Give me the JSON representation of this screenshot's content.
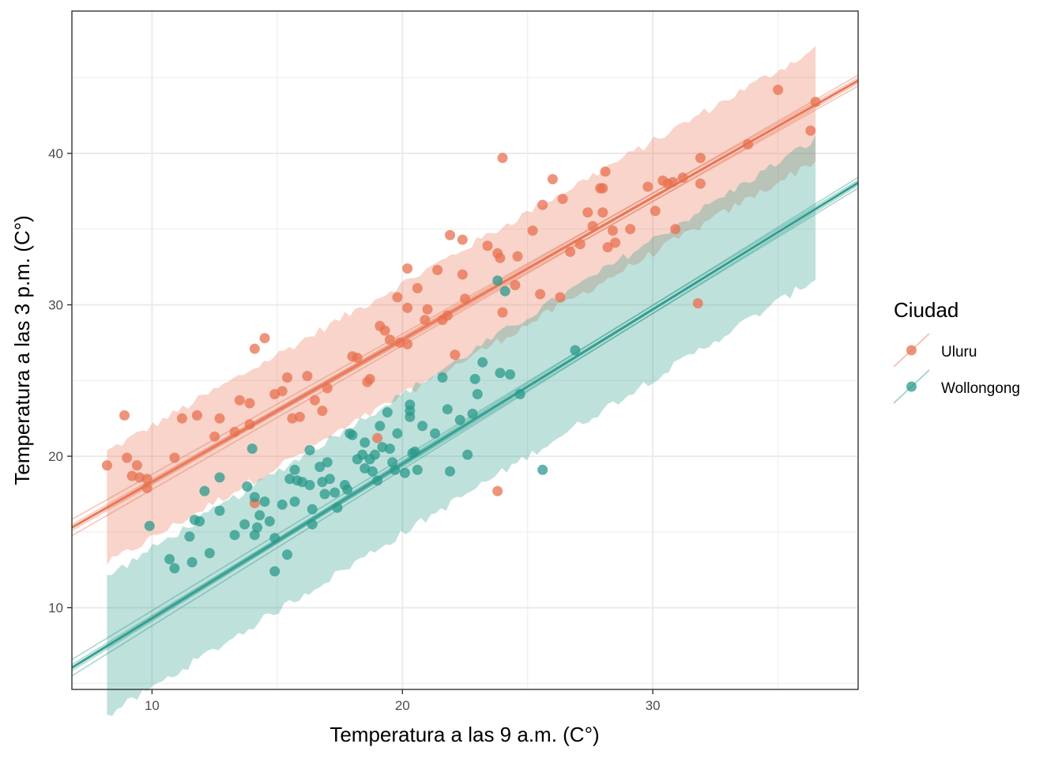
{
  "chart_data": {
    "type": "scatter",
    "title": "",
    "xlabel": "Temperatura a las 9 a.m. (C°)",
    "ylabel": "Temperatura a las 3 p.m. (C°)",
    "xlim": [
      6.8,
      38.2
    ],
    "ylim": [
      4.6,
      49.4
    ],
    "x_ticks": [
      10,
      20,
      30
    ],
    "y_ticks": [
      10,
      20,
      30,
      40
    ],
    "x_tick_labels": [
      "10",
      "20",
      "30"
    ],
    "y_tick_labels": [
      "10",
      "20",
      "30",
      "40"
    ],
    "grid": true,
    "legend": {
      "title": "Ciudad",
      "position": "right",
      "entries": [
        "Uluru",
        "Wollongong"
      ]
    },
    "series": [
      {
        "name": "Uluru",
        "color": "#E8704F",
        "fit": {
          "intercept": 8.9,
          "slope": 0.94,
          "x_range": [
            6.8,
            38.2
          ],
          "band_x": [
            8.2,
            36.5
          ],
          "band_half_width": 3.7
        },
        "points": [
          [
            8.2,
            19.4
          ],
          [
            8.9,
            22.7
          ],
          [
            9.0,
            19.9
          ],
          [
            9.2,
            18.7
          ],
          [
            9.4,
            19.4
          ],
          [
            9.5,
            18.6
          ],
          [
            9.8,
            18.5
          ],
          [
            9.8,
            17.9
          ],
          [
            10.9,
            19.9
          ],
          [
            11.2,
            22.5
          ],
          [
            11.8,
            22.7
          ],
          [
            12.5,
            21.3
          ],
          [
            12.7,
            22.5
          ],
          [
            13.3,
            21.6
          ],
          [
            13.5,
            23.7
          ],
          [
            13.9,
            22.1
          ],
          [
            13.9,
            23.5
          ],
          [
            14.1,
            27.1
          ],
          [
            14.5,
            27.8
          ],
          [
            14.9,
            24.1
          ],
          [
            15.2,
            24.3
          ],
          [
            15.4,
            25.2
          ],
          [
            15.6,
            22.5
          ],
          [
            15.9,
            22.6
          ],
          [
            16.2,
            25.3
          ],
          [
            16.5,
            23.7
          ],
          [
            16.8,
            23.0
          ],
          [
            17.0,
            24.5
          ],
          [
            18.0,
            26.6
          ],
          [
            18.2,
            26.5
          ],
          [
            18.6,
            24.9
          ],
          [
            18.7,
            25.1
          ],
          [
            19.0,
            21.2
          ],
          [
            19.1,
            28.6
          ],
          [
            19.3,
            28.3
          ],
          [
            19.5,
            27.7
          ],
          [
            19.8,
            30.5
          ],
          [
            19.9,
            27.5
          ],
          [
            20.2,
            32.4
          ],
          [
            20.2,
            29.8
          ],
          [
            20.2,
            27.4
          ],
          [
            20.6,
            31.1
          ],
          [
            20.9,
            29.0
          ],
          [
            21.0,
            29.7
          ],
          [
            21.4,
            32.3
          ],
          [
            21.6,
            29.0
          ],
          [
            21.8,
            29.3
          ],
          [
            21.9,
            34.6
          ],
          [
            22.1,
            26.7
          ],
          [
            22.4,
            34.3
          ],
          [
            22.4,
            32.0
          ],
          [
            22.5,
            30.4
          ],
          [
            23.4,
            33.9
          ],
          [
            23.8,
            33.4
          ],
          [
            23.9,
            33.1
          ],
          [
            24.0,
            39.7
          ],
          [
            24.0,
            29.5
          ],
          [
            24.5,
            31.3
          ],
          [
            24.6,
            33.2
          ],
          [
            25.2,
            34.9
          ],
          [
            25.5,
            30.7
          ],
          [
            25.6,
            36.6
          ],
          [
            26.0,
            38.3
          ],
          [
            26.3,
            30.5
          ],
          [
            26.4,
            37.0
          ],
          [
            26.7,
            33.5
          ],
          [
            27.1,
            34.0
          ],
          [
            27.4,
            36.1
          ],
          [
            27.6,
            35.2
          ],
          [
            27.9,
            37.7
          ],
          [
            28.0,
            36.1
          ],
          [
            28.0,
            37.7
          ],
          [
            28.1,
            38.8
          ],
          [
            28.2,
            33.8
          ],
          [
            28.4,
            34.9
          ],
          [
            28.5,
            34.1
          ],
          [
            29.1,
            35.0
          ],
          [
            29.8,
            37.8
          ],
          [
            30.1,
            36.2
          ],
          [
            30.4,
            38.2
          ],
          [
            30.6,
            38.0
          ],
          [
            30.8,
            38.1
          ],
          [
            30.9,
            35.0
          ],
          [
            31.2,
            38.4
          ],
          [
            31.8,
            30.1
          ],
          [
            31.9,
            39.7
          ],
          [
            31.9,
            38.0
          ],
          [
            33.8,
            40.6
          ],
          [
            35.0,
            44.2
          ],
          [
            36.3,
            41.5
          ],
          [
            36.5,
            43.4
          ],
          [
            14.1,
            16.9
          ],
          [
            23.8,
            17.7
          ]
        ]
      },
      {
        "name": "Wollongong",
        "color": "#2A9A8B",
        "fit": {
          "intercept": -0.9,
          "slope": 1.02,
          "x_range": [
            6.8,
            38.2
          ],
          "band_x": [
            8.2,
            36.5
          ],
          "band_half_width": 4.6
        },
        "points": [
          [
            9.9,
            15.4
          ],
          [
            10.7,
            13.2
          ],
          [
            10.9,
            12.6
          ],
          [
            11.5,
            14.7
          ],
          [
            11.6,
            13.0
          ],
          [
            11.7,
            15.8
          ],
          [
            11.9,
            15.7
          ],
          [
            12.1,
            17.7
          ],
          [
            12.3,
            13.6
          ],
          [
            12.7,
            18.6
          ],
          [
            12.7,
            16.4
          ],
          [
            13.3,
            14.8
          ],
          [
            13.7,
            15.5
          ],
          [
            13.8,
            18.0
          ],
          [
            14.0,
            20.5
          ],
          [
            14.1,
            17.3
          ],
          [
            14.1,
            14.8
          ],
          [
            14.2,
            15.3
          ],
          [
            14.3,
            16.1
          ],
          [
            14.5,
            17.0
          ],
          [
            14.7,
            15.7
          ],
          [
            14.9,
            14.6
          ],
          [
            14.9,
            12.4
          ],
          [
            15.2,
            16.8
          ],
          [
            15.4,
            13.5
          ],
          [
            15.5,
            18.5
          ],
          [
            15.7,
            19.1
          ],
          [
            15.7,
            17.0
          ],
          [
            15.8,
            18.4
          ],
          [
            16.0,
            18.3
          ],
          [
            16.3,
            20.4
          ],
          [
            16.3,
            18.1
          ],
          [
            16.4,
            16.5
          ],
          [
            16.4,
            15.5
          ],
          [
            16.7,
            19.3
          ],
          [
            16.8,
            18.3
          ],
          [
            16.9,
            17.5
          ],
          [
            17.0,
            19.6
          ],
          [
            17.1,
            18.5
          ],
          [
            17.3,
            17.6
          ],
          [
            17.4,
            16.6
          ],
          [
            17.7,
            18.1
          ],
          [
            17.8,
            17.8
          ],
          [
            17.9,
            21.5
          ],
          [
            18.0,
            21.4
          ],
          [
            18.2,
            19.8
          ],
          [
            18.4,
            20.1
          ],
          [
            18.5,
            19.2
          ],
          [
            18.5,
            20.9
          ],
          [
            18.7,
            19.8
          ],
          [
            18.8,
            19.0
          ],
          [
            18.9,
            20.1
          ],
          [
            19.0,
            18.4
          ],
          [
            19.1,
            22.0
          ],
          [
            19.2,
            20.6
          ],
          [
            19.4,
            22.9
          ],
          [
            19.5,
            20.5
          ],
          [
            19.6,
            19.6
          ],
          [
            19.7,
            19.1
          ],
          [
            19.8,
            21.5
          ],
          [
            20.1,
            18.9
          ],
          [
            20.3,
            22.6
          ],
          [
            20.3,
            23.0
          ],
          [
            20.3,
            23.4
          ],
          [
            20.4,
            20.2
          ],
          [
            20.5,
            20.3
          ],
          [
            20.6,
            19.1
          ],
          [
            20.8,
            22.0
          ],
          [
            21.3,
            21.5
          ],
          [
            21.6,
            25.2
          ],
          [
            21.8,
            23.1
          ],
          [
            21.9,
            19.0
          ],
          [
            22.3,
            22.4
          ],
          [
            22.6,
            20.1
          ],
          [
            22.8,
            22.8
          ],
          [
            22.9,
            25.1
          ],
          [
            23.0,
            24.1
          ],
          [
            23.2,
            26.2
          ],
          [
            23.8,
            31.6
          ],
          [
            23.9,
            25.5
          ],
          [
            24.1,
            30.9
          ],
          [
            24.3,
            25.4
          ],
          [
            24.7,
            24.1
          ],
          [
            25.6,
            19.1
          ],
          [
            26.9,
            27.0
          ]
        ]
      }
    ]
  }
}
